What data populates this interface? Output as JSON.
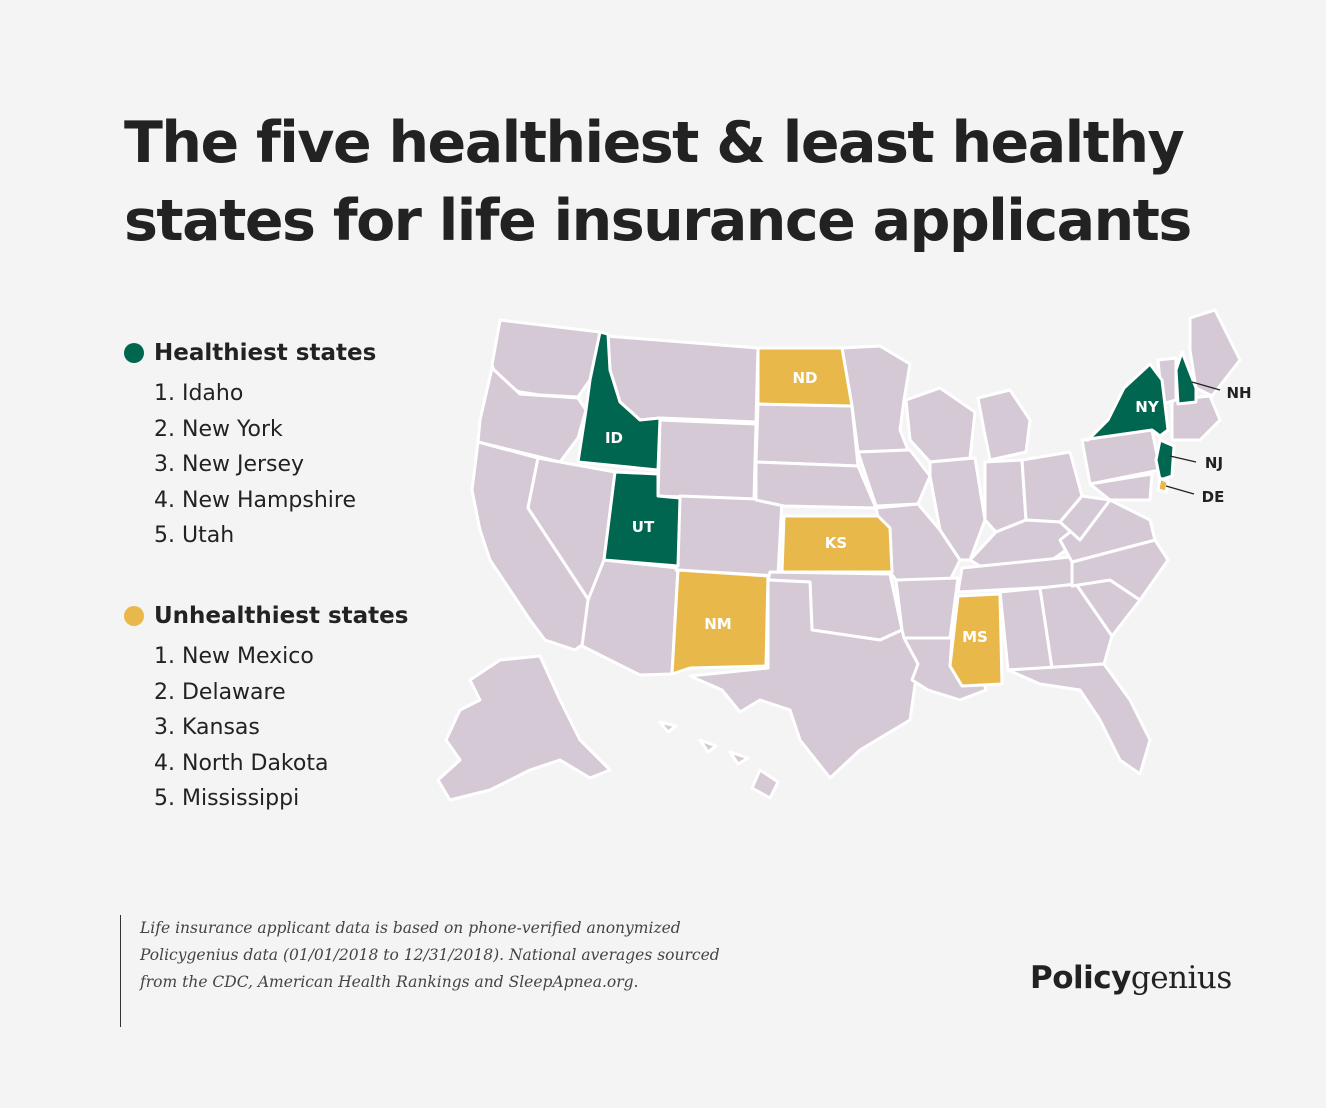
{
  "title": "The five healthiest & least healthy states for life insurance applicants",
  "colors": {
    "healthy": "#00664f",
    "unhealthy": "#e8b84a",
    "other": "#d5c9d5",
    "border": "#ffffff",
    "background": "#f4f4f4"
  },
  "legend": {
    "healthiest": {
      "heading": "Healthiest states",
      "items": [
        "1. Idaho",
        "2. New York",
        "3. New Jersey",
        "4. New Hampshire",
        "5. Utah"
      ]
    },
    "unhealthiest": {
      "heading": "Unhealthiest states",
      "items": [
        "1. New Mexico",
        "2. Delaware",
        "3. Kansas",
        "4. North Dakota",
        "5. Mississippi"
      ]
    }
  },
  "map_labels": {
    "ID": "ID",
    "UT": "UT",
    "NY": "NY",
    "NH": "NH",
    "NJ": "NJ",
    "NM": "NM",
    "DE": "DE",
    "KS": "KS",
    "ND": "ND",
    "MS": "MS"
  },
  "footnote": "Life insurance applicant data is based on phone-verified anonymized Policygenius data (01/01/2018 to 12/31/2018). National averages sourced from the CDC, American Health Rankings and SleepApnea.org.",
  "brand": {
    "bold": "Policy",
    "light": "genius"
  }
}
